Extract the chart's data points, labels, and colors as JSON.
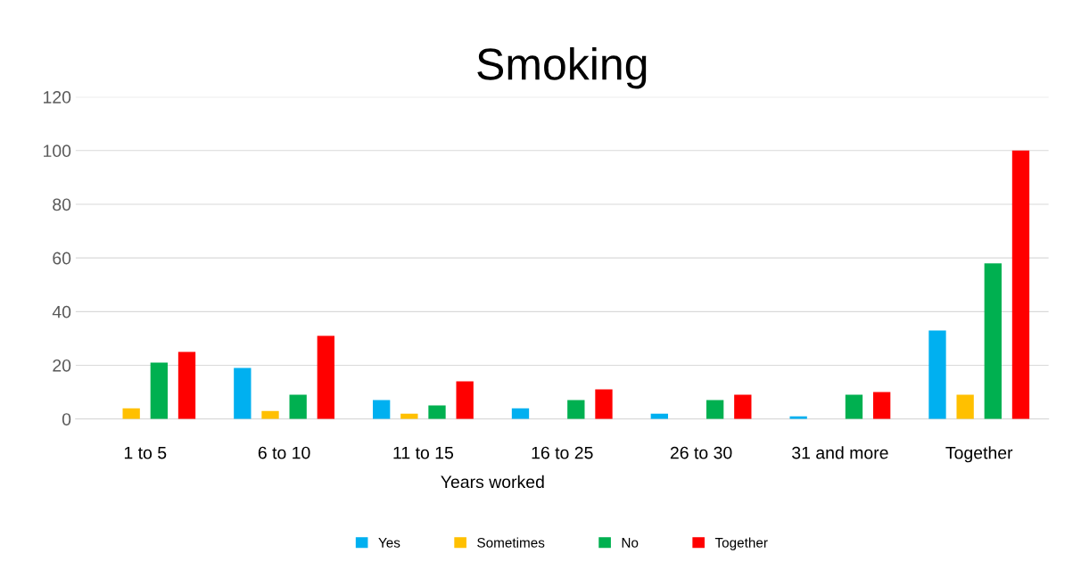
{
  "chart_data": {
    "type": "bar",
    "title": "Smoking",
    "xlabel": "Years worked",
    "categories": [
      "1 to 5",
      "6 to 10",
      "11 to 15",
      "16 to 25",
      "26 to 30",
      "31 and more",
      "Together"
    ],
    "series": [
      {
        "name": "Yes",
        "color": "#00b0f0",
        "values": [
          0,
          19,
          7,
          4,
          2,
          1,
          33
        ]
      },
      {
        "name": "Sometimes",
        "color": "#ffc000",
        "values": [
          4,
          3,
          2,
          0,
          0,
          0,
          9
        ]
      },
      {
        "name": "No",
        "color": "#00b050",
        "values": [
          21,
          9,
          5,
          7,
          7,
          9,
          58
        ]
      },
      {
        "name": "Together",
        "color": "#ff0000",
        "values": [
          25,
          31,
          14,
          11,
          9,
          10,
          100
        ]
      }
    ],
    "ylim": [
      0,
      120
    ],
    "yticks": [
      0,
      20,
      40,
      60,
      80,
      100,
      120
    ],
    "grid": "y",
    "legend": "bottom"
  }
}
